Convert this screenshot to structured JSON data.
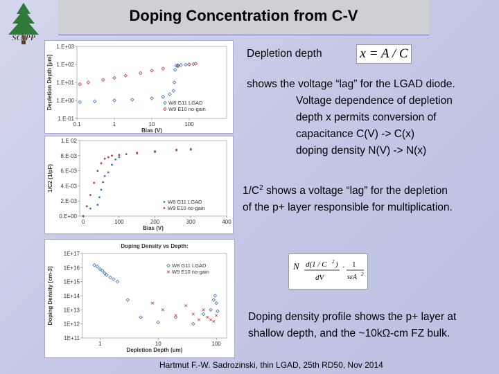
{
  "slide": {
    "title": "Doping Concentration from C-V",
    "logo_text": "SCIPP",
    "footer": "Hartmut F.-W. Sadrozinski, thin LGAD, 25th RD50, Nov 2014",
    "colors": {
      "series_lgad": "#3a73b8",
      "series_nogain": "#c23b3b",
      "title_bar": "#cfd0d6"
    }
  },
  "text": {
    "depletion_label": "Depletion depth",
    "formula1": "x = A / C",
    "para1_line1": "shows the voltage “lag” for the LGAD diode.",
    "para1_line2": "Voltage dependence of depletion",
    "para1_line3": "depth x permits conversion of",
    "para1_line4": "capacitance C(V) -> C(x)",
    "para1_line5": "doping density N(V) -> N(x)",
    "para2_pre": "1/C",
    "para2_sup": "2",
    "para2_line1_rest": " shows a voltage “lag” for the depletion",
    "para2_line2": "of the p+ layer responsible for multiplication.",
    "formula2_lhs": "N",
    "formula2_num1": "d(1 / C",
    "formula2_num1_sup": "2",
    "formula2_num1_end": ")",
    "formula2_den1": "dV",
    "formula2_num2": "1",
    "formula2_den2": "sεA",
    "formula2_den2_sup": "2",
    "para3_line1": "Doping density profile shows the p+ layer at",
    "para3_line2": "shallow depth, and the ~10kΩ-cm FZ bulk."
  },
  "chart_data": [
    {
      "type": "scatter",
      "title": "",
      "xlabel": "Bias (V)",
      "ylabel": "Depletion Depth [µm]",
      "xscale": "log",
      "yscale": "log",
      "xlim": [
        0.1,
        1000
      ],
      "ylim": [
        0.1,
        1000
      ],
      "x_ticks": [
        "0.1",
        "1",
        "10",
        "100"
      ],
      "y_ticks": [
        "1.E-01",
        "1.E+00",
        "1.E+01",
        "1.E+02",
        "1.E+03"
      ],
      "series": [
        {
          "name": "W8 G11 LGAD",
          "color": "#3a73b8",
          "x": [
            0.12,
            0.3,
            1,
            3,
            10,
            20,
            30,
            38,
            40,
            42,
            45,
            50,
            60,
            80,
            100,
            130
          ],
          "y": [
            0.8,
            0.9,
            1.0,
            1.1,
            1.3,
            1.6,
            2.2,
            3.5,
            10,
            50,
            85,
            90,
            93,
            97,
            100,
            105
          ]
        },
        {
          "name": "W9 E10 no-gain",
          "color": "#c23b3b",
          "x": [
            0.12,
            0.2,
            0.5,
            1,
            2,
            5,
            10,
            20,
            50,
            100,
            150
          ],
          "y": [
            8,
            10,
            14,
            18,
            24,
            33,
            45,
            58,
            80,
            100,
            110
          ]
        }
      ],
      "legend": "bottom-right",
      "grid": false
    },
    {
      "type": "scatter",
      "title": "",
      "xlabel": "Bias (V)",
      "ylabel": "1/C2 (1/pF)",
      "xlim": [
        -10,
        400
      ],
      "ylim": [
        0,
        0.01
      ],
      "x_ticks": [
        "0",
        "100",
        "200",
        "300",
        "400"
      ],
      "y_ticks": [
        "0.E+00",
        "2.E-03",
        "4.E-03",
        "6.E-03",
        "8.E-03",
        "1.E 02"
      ],
      "series": [
        {
          "name": "W8 G11 LGAD",
          "color": "#3a73b8",
          "x": [
            0,
            20,
            40,
            45,
            50,
            55,
            60,
            70,
            80,
            90,
            100,
            120,
            150,
            200,
            260,
            300
          ],
          "y": [
            0.0,
            0.001,
            0.0015,
            0.0025,
            0.0035,
            0.0045,
            0.0053,
            0.0058,
            0.0068,
            0.0075,
            0.0078,
            0.0082,
            0.0084,
            0.0086,
            0.0088,
            0.0089
          ]
        },
        {
          "name": "W9 E10 no-gain",
          "color": "#c23b3b",
          "x": [
            0,
            10,
            20,
            30,
            40,
            50,
            60,
            70,
            80,
            100,
            150,
            200,
            260,
            300
          ],
          "y": [
            0.0,
            0.0013,
            0.0028,
            0.0044,
            0.006,
            0.007,
            0.0076,
            0.0078,
            0.008,
            0.0081,
            0.0083,
            0.0085,
            0.0087,
            0.0088
          ]
        }
      ],
      "legend": "bottom-right",
      "grid": false
    },
    {
      "type": "scatter",
      "title": "Doping Density vs Depth:",
      "xlabel": "Depletion Depth (um)",
      "ylabel": "Doping Density [cm-3]",
      "xscale": "log",
      "yscale": "log",
      "xlim": [
        0.5,
        150
      ],
      "ylim": [
        100000000000.0,
        1e+17
      ],
      "x_ticks": [
        "1",
        "10",
        "100"
      ],
      "y_ticks": [
        "1E+11",
        "1E+12",
        "1E+13",
        "1E+14",
        "1E+15",
        "1E+16",
        "1E+17"
      ],
      "series": [
        {
          "name": "W8 G11 LGAD",
          "color": "#3a73b8",
          "x": [
            0.8,
            0.9,
            1.0,
            1.1,
            1.2,
            1.3,
            1.5,
            1.7,
            2.0,
            3,
            5,
            10,
            20,
            40,
            60,
            80,
            90,
            95,
            100,
            105
          ],
          "y": [
            1.5e+16,
            1.2e+16,
            8000000000000000.0,
            6000000000000000.0,
            4000000000000000.0,
            3000000000000000.0,
            2000000000000000.0,
            1500000000000000.0,
            1000000000000000.0,
            50000000000000.0,
            3000000000000.0,
            1300000000000.0,
            3000000000000.0,
            1000000000000.0,
            5000000000000.0,
            10000000000000.0,
            50000000000000.0,
            100000000000000.0,
            30000000000000.0,
            8000000000000.0
          ]
        },
        {
          "name": "W9 E10 no-gain",
          "color": "#c23b3b",
          "x": [
            8,
            12,
            20,
            30,
            40,
            50,
            60,
            70,
            80,
            90,
            100
          ],
          "y": [
            30000000000000.0,
            10000000000000.0,
            4000000000000.0,
            20000000000000.0,
            5000000000000.0,
            2000000000000.0,
            10000000000000.0,
            3000000000000.0,
            2000000000000.0,
            1500000000000.0,
            4000000000000.0
          ]
        }
      ],
      "legend": "top-right",
      "grid": false
    }
  ]
}
